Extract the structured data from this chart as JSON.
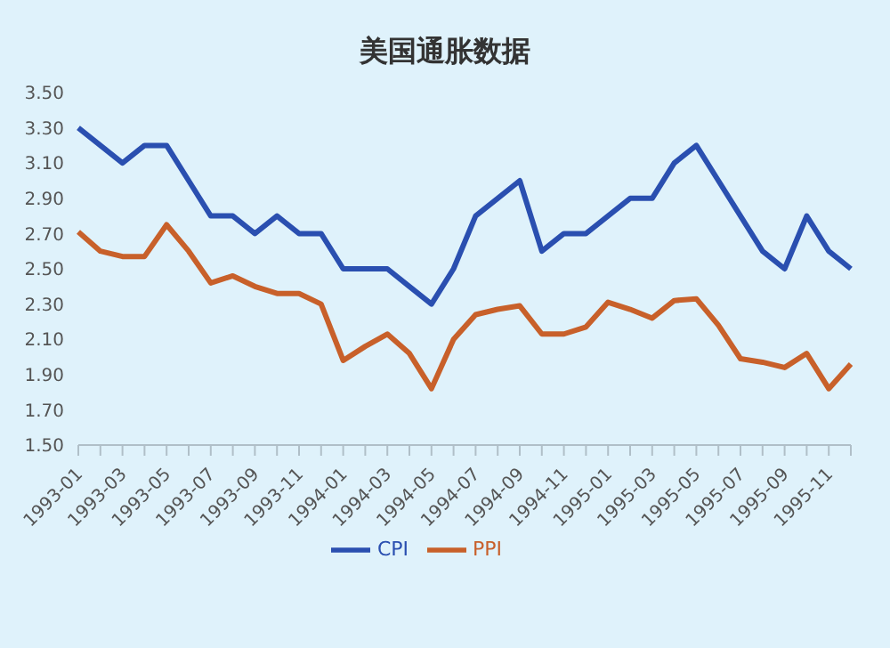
{
  "chart_data": {
    "type": "line",
    "title": "美国通胀数据",
    "categories": [
      "1993-01",
      null,
      "1993-03",
      null,
      "1993-05",
      null,
      "1993-07",
      null,
      "1993-09",
      null,
      "1993-11",
      null,
      "1994-01",
      null,
      "1994-03",
      null,
      "1994-05",
      null,
      "1994-07",
      null,
      "1994-09",
      null,
      "1994-11",
      null,
      "1995-01",
      null,
      "1995-03",
      null,
      "1995-05",
      null,
      "1995-07",
      null,
      "1995-09",
      null,
      "1995-11",
      null
    ],
    "series": [
      {
        "name": "CPI",
        "color": "#2a4fb0",
        "values": [
          3.3,
          3.2,
          3.1,
          3.2,
          3.2,
          3.0,
          2.8,
          2.8,
          2.7,
          2.8,
          2.7,
          2.7,
          2.5,
          2.5,
          2.5,
          2.4,
          2.3,
          2.5,
          2.8,
          2.9,
          3.0,
          2.6,
          2.7,
          2.7,
          2.8,
          2.9,
          2.9,
          3.1,
          3.2,
          3.0,
          2.8,
          2.6,
          2.5,
          2.8,
          2.6,
          2.5
        ]
      },
      {
        "name": "PPI",
        "color": "#c8602a",
        "values": [
          2.71,
          2.6,
          2.57,
          2.57,
          2.75,
          2.6,
          2.42,
          2.46,
          2.4,
          2.36,
          2.36,
          2.3,
          1.98,
          2.06,
          2.13,
          2.02,
          1.82,
          2.1,
          2.24,
          2.27,
          2.29,
          2.13,
          2.13,
          2.17,
          2.31,
          2.27,
          2.22,
          2.32,
          2.33,
          2.18,
          1.99,
          1.97,
          1.94,
          2.02,
          1.82,
          1.96
        ]
      }
    ],
    "ylim": [
      1.5,
      3.5
    ],
    "yticks": [
      {
        "value": 1.5,
        "label": "1.50"
      },
      {
        "value": 1.7,
        "label": "1.70"
      },
      {
        "value": 1.9,
        "label": "1.90"
      },
      {
        "value": 2.1,
        "label": "2.10"
      },
      {
        "value": 2.3,
        "label": "2.30"
      },
      {
        "value": 2.5,
        "label": "2.50"
      },
      {
        "value": 2.7,
        "label": "2.70"
      },
      {
        "value": 2.9,
        "label": "2.90"
      },
      {
        "value": 3.1,
        "label": "3.10"
      },
      {
        "value": 3.3,
        "label": "3.30"
      },
      {
        "value": 3.5,
        "label": "3.50"
      }
    ],
    "grid": false,
    "legend": "bottom",
    "marker": "none",
    "line_style": "solid"
  }
}
